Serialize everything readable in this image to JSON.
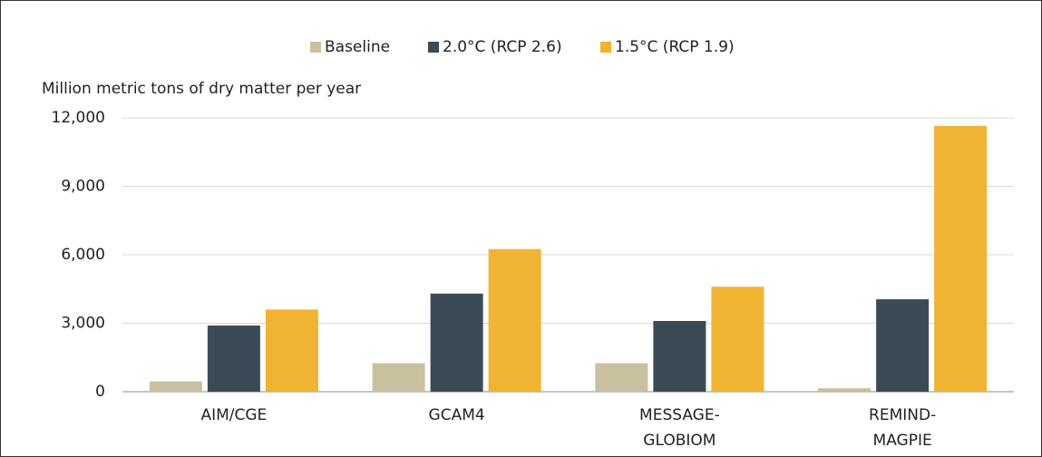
{
  "chart_data": {
    "type": "bar",
    "y_axis_label": "Million metric tons of dry matter per year",
    "categories": [
      "AIM/CGE",
      "GCAM4",
      "MESSAGE-GLOBIOM",
      "REMIND-MAGPIE"
    ],
    "series": [
      {
        "name": "Baseline",
        "color": "#c9c0a0",
        "values": [
          450,
          1250,
          1250,
          150
        ]
      },
      {
        "name": "2.0°C (RCP 2.6)",
        "color": "#3a4b56",
        "values": [
          2900,
          4300,
          3100,
          4050
        ]
      },
      {
        "name": "1.5°C (RCP 1.9)",
        "color": "#f0b332",
        "values": [
          3600,
          6250,
          4600,
          11650
        ]
      }
    ],
    "ylim": [
      0,
      12000
    ],
    "yticks": [
      0,
      {
        "value": 3000,
        "label": "3,000"
      },
      {
        "value": 6000,
        "label": "6,000"
      },
      {
        "value": 9000,
        "label": "9,000"
      },
      {
        "value": 12000,
        "label": "12,000"
      }
    ],
    "grid": true,
    "legend": "top"
  }
}
